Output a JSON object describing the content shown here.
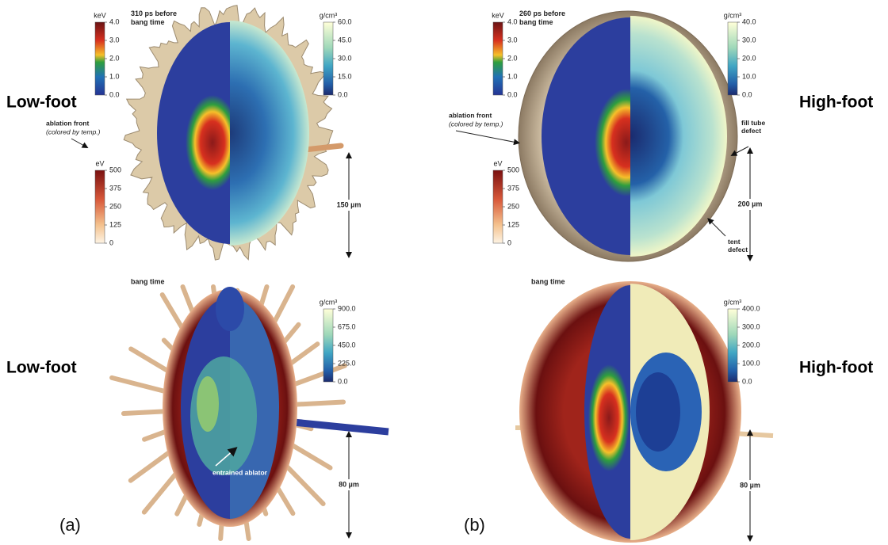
{
  "panels": [
    {
      "label": "(a)",
      "top": {
        "time": "310 ps before bang time",
        "design": "Low-foot",
        "colorbars": [
          {
            "unit": "keV",
            "ticks": [
              "4.0",
              "3.0",
              "2.0",
              "1.0",
              "0.0"
            ]
          },
          {
            "unit": "g/cm³",
            "ticks": [
              "60.0",
              "45.0",
              "30.0",
              "15.0",
              "0.0"
            ]
          },
          {
            "unit": "eV",
            "ticks": [
              "500",
              "375",
              "250",
              "125",
              "0"
            ]
          }
        ],
        "annotations": [
          "ablation front",
          "(colored by temp.)"
        ],
        "scale": "150 µm"
      },
      "bottom": {
        "time": "bang time",
        "design": "Low-foot",
        "colorbars": [
          {
            "unit": "g/cm³",
            "ticks": [
              "900.0",
              "675.0",
              "450.0",
              "225.0",
              "0.0"
            ]
          }
        ],
        "annotations": [
          "entrained ablator"
        ],
        "scale": "80 µm"
      }
    },
    {
      "label": "(b)",
      "top": {
        "time": "260 ps before bang time",
        "design": "High-foot",
        "colorbars": [
          {
            "unit": "keV",
            "ticks": [
              "4.0",
              "3.0",
              "2.0",
              "1.0",
              "0.0"
            ]
          },
          {
            "unit": "g/cm³",
            "ticks": [
              "40.0",
              "30.0",
              "20.0",
              "10.0",
              "0.0"
            ]
          },
          {
            "unit": "eV",
            "ticks": [
              "500",
              "375",
              "250",
              "125",
              "0"
            ]
          }
        ],
        "annotations": [
          "ablation front",
          "(colored by temp.)",
          "fill tube defect",
          "tent defect"
        ],
        "scale": "200 µm"
      },
      "bottom": {
        "time": "bang time",
        "design": "High-foot",
        "colorbars": [
          {
            "unit": "g/cm³",
            "ticks": [
              "400.0",
              "300.0",
              "200.0",
              "100.0",
              "0.0"
            ]
          }
        ],
        "annotations": [],
        "scale": "80 µm"
      }
    }
  ]
}
